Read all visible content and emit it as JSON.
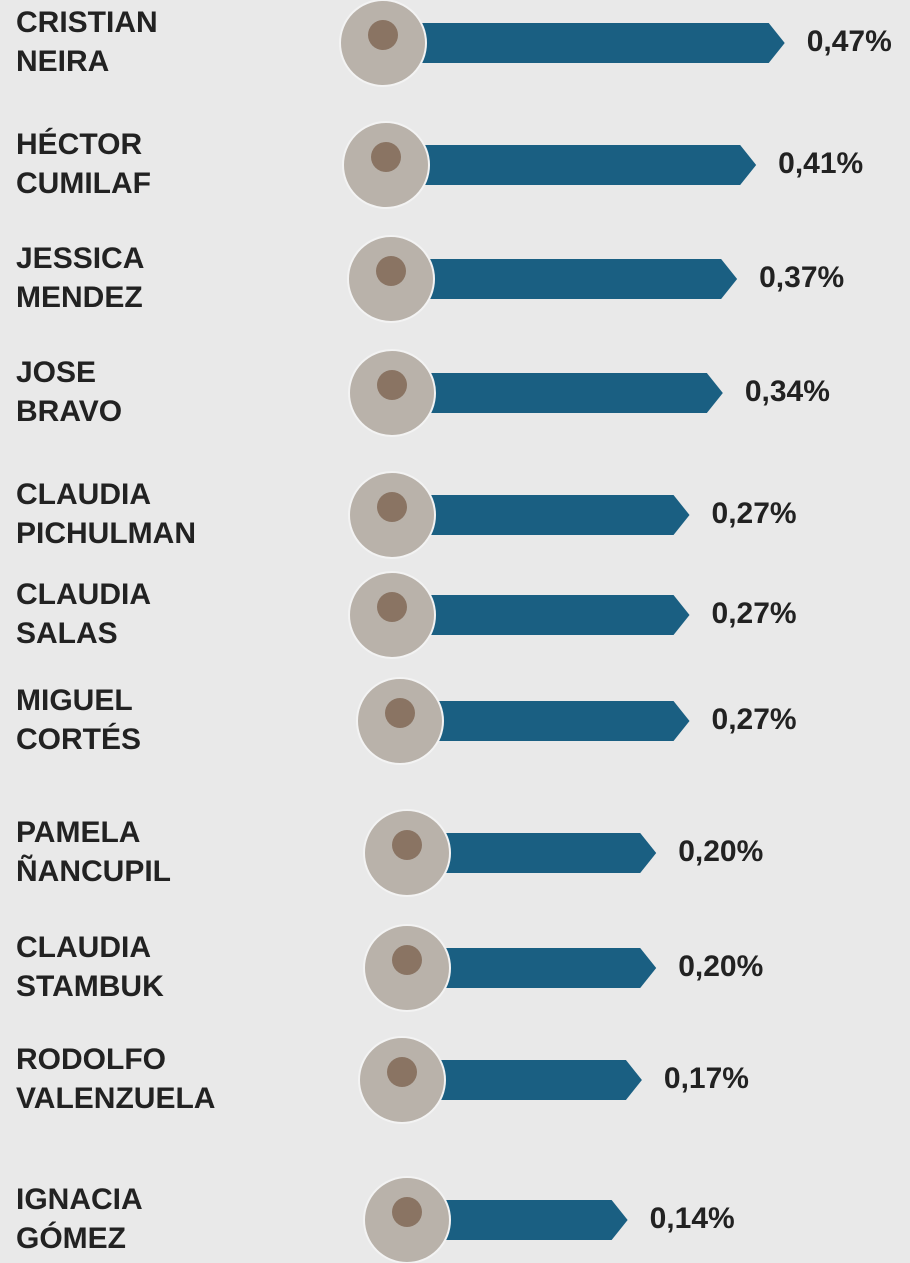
{
  "chart_data": {
    "type": "bar",
    "categories": [
      [
        "CRISTIAN",
        "NEIRA"
      ],
      [
        "HÉCTOR",
        "CUMILAF"
      ],
      [
        "JESSICA",
        "MENDEZ"
      ],
      [
        "JOSE",
        "BRAVO"
      ],
      [
        "CLAUDIA",
        "PICHULMAN"
      ],
      [
        "CLAUDIA",
        "SALAS"
      ],
      [
        "MIGUEL",
        "CORTÉS"
      ],
      [
        "PAMELA",
        "ÑANCUPIL"
      ],
      [
        "CLAUDIA",
        "STAMBUK"
      ],
      [
        "RODOLFO",
        "VALENZUELA"
      ],
      [
        "IGNACIA",
        "GÓMEZ"
      ]
    ],
    "values": [
      0.47,
      0.41,
      0.37,
      0.34,
      0.27,
      0.27,
      0.27,
      0.2,
      0.2,
      0.17,
      0.14
    ],
    "value_labels": [
      "0,47%",
      "0,41%",
      "0,37%",
      "0,34%",
      "0,27%",
      "0,27%",
      "0,27%",
      "0,20%",
      "0,20%",
      "0,17%",
      "0,14%"
    ],
    "color": "#1a5f82"
  }
}
